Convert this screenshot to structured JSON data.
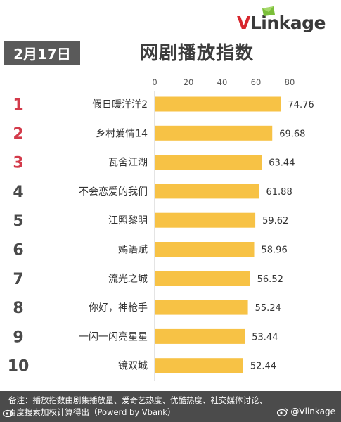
{
  "brand": {
    "logo_initial": "V",
    "logo_rest": "Link",
    "logo_tail": "age",
    "colors": {
      "red": "#d7262d",
      "dark": "#3a3a3a",
      "green": "#7bbf3a"
    }
  },
  "header": {
    "date_badge": "2月17日",
    "title": "网剧播放指数"
  },
  "chart_data": {
    "type": "bar",
    "orientation": "horizontal",
    "xlim": [
      0,
      80
    ],
    "x_ticks": [
      0,
      20,
      40,
      60,
      80
    ],
    "grid": false,
    "bar_color": "#f7c245",
    "rank_colors": {
      "top3": "#d33a4a",
      "rest": "#4a4a4a"
    },
    "ranks": [
      "1",
      "2",
      "3",
      "4",
      "5",
      "6",
      "7",
      "8",
      "9",
      "10"
    ],
    "categories": [
      "假日暖洋洋2",
      "乡村爱情14",
      "瓦舍江湖",
      "不会恋爱的我们",
      "江照黎明",
      "嫣语赋",
      "流光之城",
      "你好，神枪手",
      "一闪一闪亮星星",
      "镜双城"
    ],
    "values": [
      74.76,
      69.68,
      63.44,
      61.88,
      59.62,
      58.96,
      56.52,
      55.24,
      53.44,
      52.44
    ],
    "value_labels": [
      "74.76",
      "69.68",
      "63.44",
      "61.88",
      "59.62",
      "58.96",
      "56.52",
      "55.24",
      "53.44",
      "52.44"
    ]
  },
  "footer": {
    "line1": "备注：播放指数由剧集播放量、爱奇艺热度、优酷热度、社交媒体讨论、",
    "line2": "百度搜索加权计算得出（Powerd by Vbank）",
    "watermark": "@Vlinkage"
  }
}
